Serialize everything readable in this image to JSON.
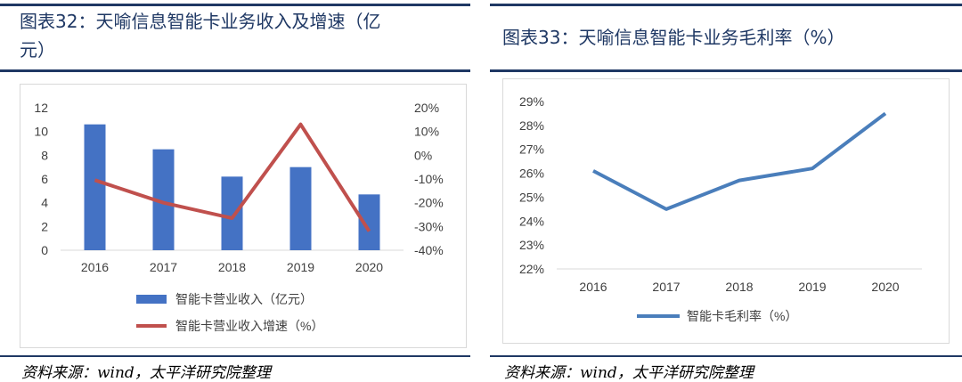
{
  "left_panel": {
    "title_line1": "图表32：天喻信息智能卡业务收入及增速（亿",
    "title_line2": "元）",
    "source": "资料来源：wind，太平洋研究院整理"
  },
  "right_panel": {
    "title": "图表33：天喻信息智能卡业务毛利率（%）",
    "source": "资料来源：wind，太平洋研究院整理"
  },
  "chart_data": [
    {
      "type": "bar+line",
      "categories": [
        "2016",
        "2017",
        "2018",
        "2019",
        "2020"
      ],
      "series": [
        {
          "name": "智能卡营业收入（亿元）",
          "type": "bar",
          "axis": "left",
          "values": [
            10.6,
            8.5,
            6.2,
            7.0,
            4.7
          ],
          "color": "#4472c4"
        },
        {
          "name": "智能卡营业收入增速（%）",
          "type": "line",
          "axis": "right",
          "values": [
            -10.5,
            -20,
            -26.5,
            13,
            -32
          ],
          "color": "#c0504d"
        }
      ],
      "yticks_left": [
        "0",
        "2",
        "4",
        "6",
        "8",
        "10",
        "12"
      ],
      "ylim_left": [
        0,
        12
      ],
      "yticks_right": [
        "-40%",
        "-30%",
        "-20%",
        "-10%",
        "0%",
        "10%",
        "20%"
      ],
      "ylim_right": [
        -40,
        20
      ],
      "legend": "bottom"
    },
    {
      "type": "line",
      "categories": [
        "2016",
        "2017",
        "2018",
        "2019",
        "2020"
      ],
      "series": [
        {
          "name": "智能卡毛利率（%）",
          "values": [
            26.1,
            24.5,
            25.7,
            26.2,
            28.5
          ],
          "color": "#4a7ebb"
        }
      ],
      "yticks": [
        "22%",
        "23%",
        "24%",
        "25%",
        "26%",
        "27%",
        "28%",
        "29%"
      ],
      "ylim": [
        22,
        29
      ],
      "legend": "bottom"
    }
  ]
}
